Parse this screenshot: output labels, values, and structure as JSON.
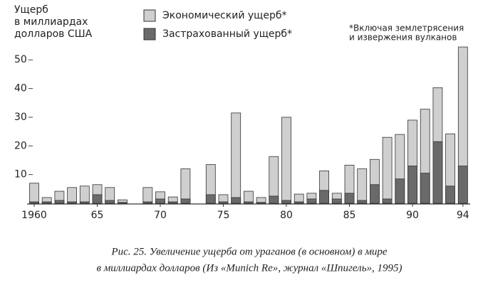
{
  "chart_data": {
    "type": "bar",
    "y_label": [
      "Ущерб",
      "в миллиардах",
      "долларов США"
    ],
    "annotation": [
      "*Включая землетрясения",
      "и извержения вулканов"
    ],
    "caption": [
      "Рис. 25. Увеличение ущерба от ураганов (в основном) в мире",
      "в миллиардах долларов (Из «Munich Re», журнал «Шпигель», 1995)"
    ],
    "categories": [
      "1960",
      null,
      null,
      null,
      null,
      "65",
      null,
      null,
      null,
      null,
      "70",
      null,
      null,
      null,
      null,
      "75",
      null,
      null,
      null,
      null,
      "80",
      null,
      null,
      null,
      null,
      "85",
      null,
      null,
      null,
      null,
      "90",
      null,
      null,
      null,
      "94"
    ],
    "series": [
      {
        "name": "Экономический ущерб*",
        "color": "#cfcfcf",
        "values": [
          7,
          2,
          4.2,
          5.5,
          6,
          6.5,
          5.5,
          1.2,
          null,
          5.5,
          4,
          2.2,
          12,
          null,
          13.5,
          3,
          31.5,
          4.2,
          2,
          16.3,
          30,
          3.2,
          3.5,
          11.3,
          3.5,
          13.3,
          12,
          15.3,
          23,
          24,
          29,
          32.8,
          40.3,
          24.2,
          54.5
        ]
      },
      {
        "name": "Застрахованный ущерб*",
        "color": "#6a6a6a",
        "values": [
          0.5,
          0.5,
          1,
          0.5,
          0.5,
          3,
          1,
          0.3,
          null,
          0.5,
          1.5,
          0.5,
          1.5,
          null,
          3,
          0.5,
          2,
          0.5,
          0.3,
          2.5,
          1,
          0.5,
          1.5,
          4.5,
          1.5,
          3.5,
          1,
          6.5,
          1.5,
          8.5,
          13,
          10.5,
          21.5,
          6,
          13
        ]
      }
    ],
    "ylim": [
      0,
      57
    ],
    "yticks": [
      10,
      20,
      30,
      40,
      50
    ]
  }
}
